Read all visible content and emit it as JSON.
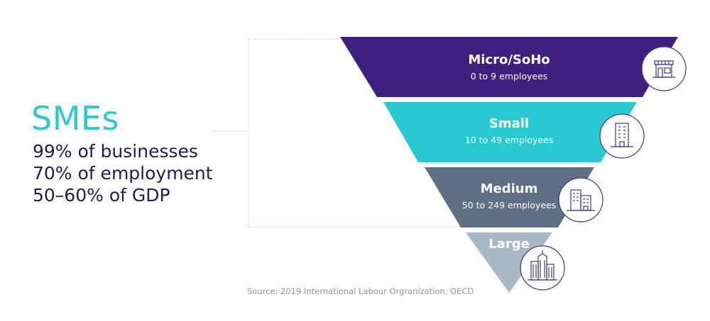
{
  "summary": {
    "title": "SMEs",
    "stats": [
      "99% of businesses",
      "70% of employment",
      "50–60% of GDP"
    ]
  },
  "tiers": [
    {
      "name": "Micro/SoHo",
      "range": "0 to 9 employees",
      "color": "#40207f",
      "icon": "storefront-icon"
    },
    {
      "name": "Small",
      "range": "10 to 49 employees",
      "color": "#2ac9d1",
      "icon": "office-building-icon"
    },
    {
      "name": "Medium",
      "range": "50 to 249 employees",
      "color": "#5f6f86",
      "icon": "office-complex-icon"
    },
    {
      "name": "Large",
      "range": "",
      "color": "#a9b8c6",
      "icon": "skyscrapers-icon"
    }
  ],
  "source": "Source: 2019 International Labour Orgranization, OECD",
  "colors": {
    "title": "#2ec9cf",
    "text": "#1f1d4d",
    "icon_stroke": "#3b3a78",
    "bracket": "#c3cbd4"
  }
}
